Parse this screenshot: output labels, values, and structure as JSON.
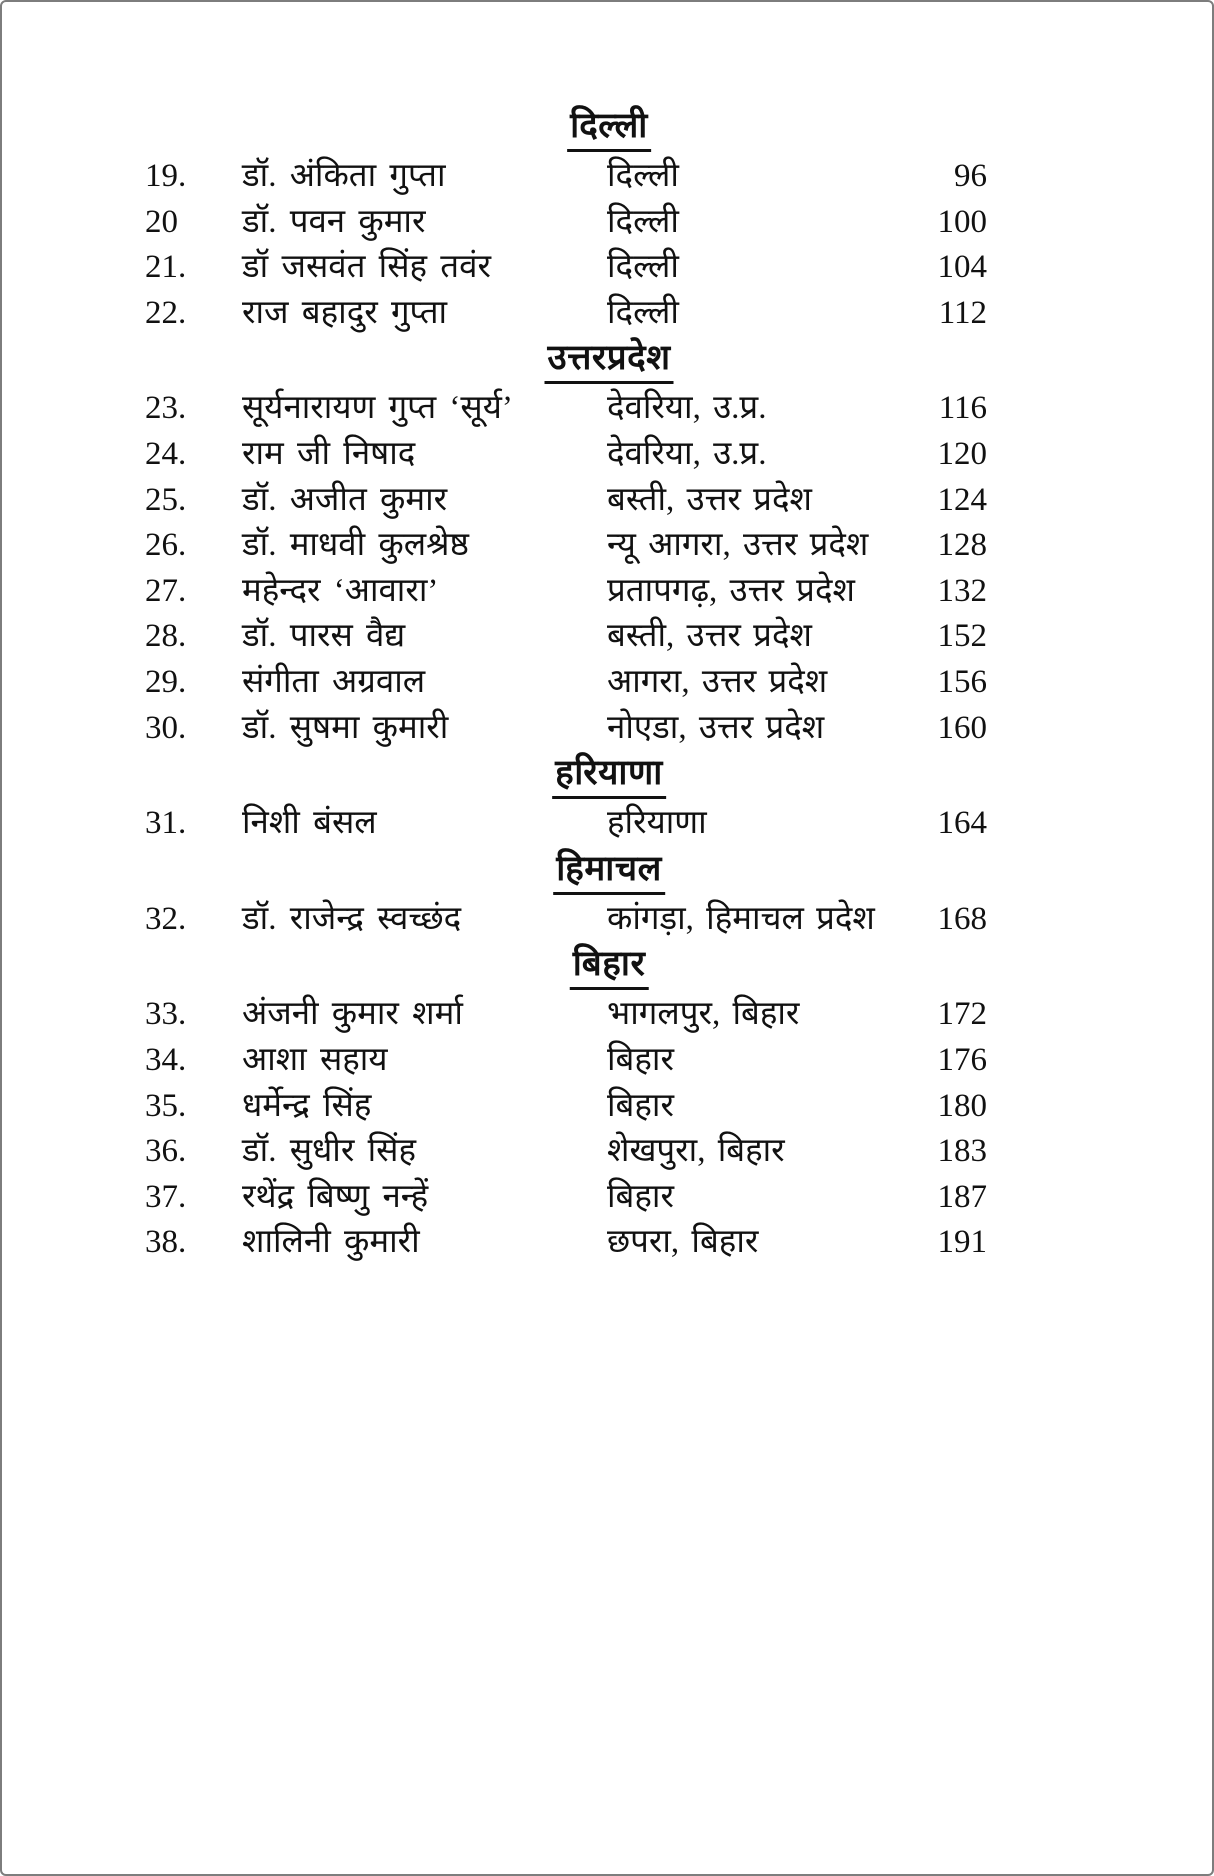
{
  "page": {
    "background": "#ffffff",
    "border_color": "#7d7d7d",
    "text_color": "#111111"
  },
  "toc": {
    "sections": [
      {
        "title": "दिल्ली",
        "rows": [
          {
            "no": "19.",
            "name": "डॉ. अंकिता गुप्ता",
            "place": "दिल्ली",
            "page": "96"
          },
          {
            "no": "20",
            "name": "डॉ. पवन कुमार",
            "place": "दिल्ली",
            "page": "100"
          },
          {
            "no": "21.",
            "name": "डॉ जसवंत सिंह तवंर",
            "place": "दिल्ली",
            "page": "104"
          },
          {
            "no": "22.",
            "name": "राज बहादुर गुप्ता",
            "place": "दिल्ली",
            "page": "112"
          }
        ]
      },
      {
        "title": "उत्तरप्रदेश",
        "rows": [
          {
            "no": "23.",
            "name": "सूर्यनारायण गुप्त ‘सूर्य’",
            "place": "देवरिया, उ.प्र.",
            "page": "116"
          },
          {
            "no": "24.",
            "name": "राम जी निषाद",
            "place": "देवरिया, उ.प्र.",
            "page": "120"
          },
          {
            "no": "25.",
            "name": "डॉ. अजीत कुमार",
            "place": "बस्ती, उत्तर प्रदेश",
            "page": "124"
          },
          {
            "no": "26.",
            "name": "डॉ. माधवी कुलश्रेष्ठ",
            "place": "न्यू आगरा, उत्तर प्रदेश",
            "page": "128"
          },
          {
            "no": "27.",
            "name": "महेन्दर ‘आवारा’",
            "place": "प्रतापगढ़, उत्तर प्रदेश",
            "page": "132"
          },
          {
            "no": "28.",
            "name": "डॉ. पारस वैद्य",
            "place": "बस्ती, उत्तर प्रदेश",
            "page": "152"
          },
          {
            "no": "29.",
            "name": "संगीता अग्रवाल",
            "place": "आगरा, उत्तर प्रदेश",
            "page": "156"
          },
          {
            "no": "30.",
            "name": "डॉ. सुषमा कुमारी",
            "place": "नोएडा, उत्तर प्रदेश",
            "page": "160"
          }
        ]
      },
      {
        "title": "हरियाणा",
        "rows": [
          {
            "no": "31.",
            "name": "निशी बंसल",
            "place": "हरियाणा",
            "page": "164"
          }
        ]
      },
      {
        "title": "हिमाचल",
        "rows": [
          {
            "no": "32.",
            "name": "डॉ. राजेन्द्र स्वच्छंद",
            "place": "कांगड़ा, हिमाचल प्रदेश",
            "page": "168"
          }
        ]
      },
      {
        "title": "बिहार",
        "rows": [
          {
            "no": "33.",
            "name": "अंजनी कुमार शर्मा",
            "place": "भागलपुर, बिहार",
            "page": "172"
          },
          {
            "no": "34.",
            "name": "आशा सहाय",
            "place": "बिहार",
            "page": "176"
          },
          {
            "no": "35.",
            "name": "धर्मेन्द्र सिंह",
            "place": "बिहार",
            "page": "180"
          },
          {
            "no": "36.",
            "name": "डॉ. सुधीर सिंह",
            "place": "शेखपुरा, बिहार",
            "page": "183"
          },
          {
            "no": "37.",
            "name": "रथेंद्र बिष्णु नन्हें",
            "place": "बिहार",
            "page": "187"
          },
          {
            "no": "38.",
            "name": "शालिनी कुमारी",
            "place": "छपरा, बिहार",
            "page": "191"
          }
        ]
      }
    ]
  }
}
